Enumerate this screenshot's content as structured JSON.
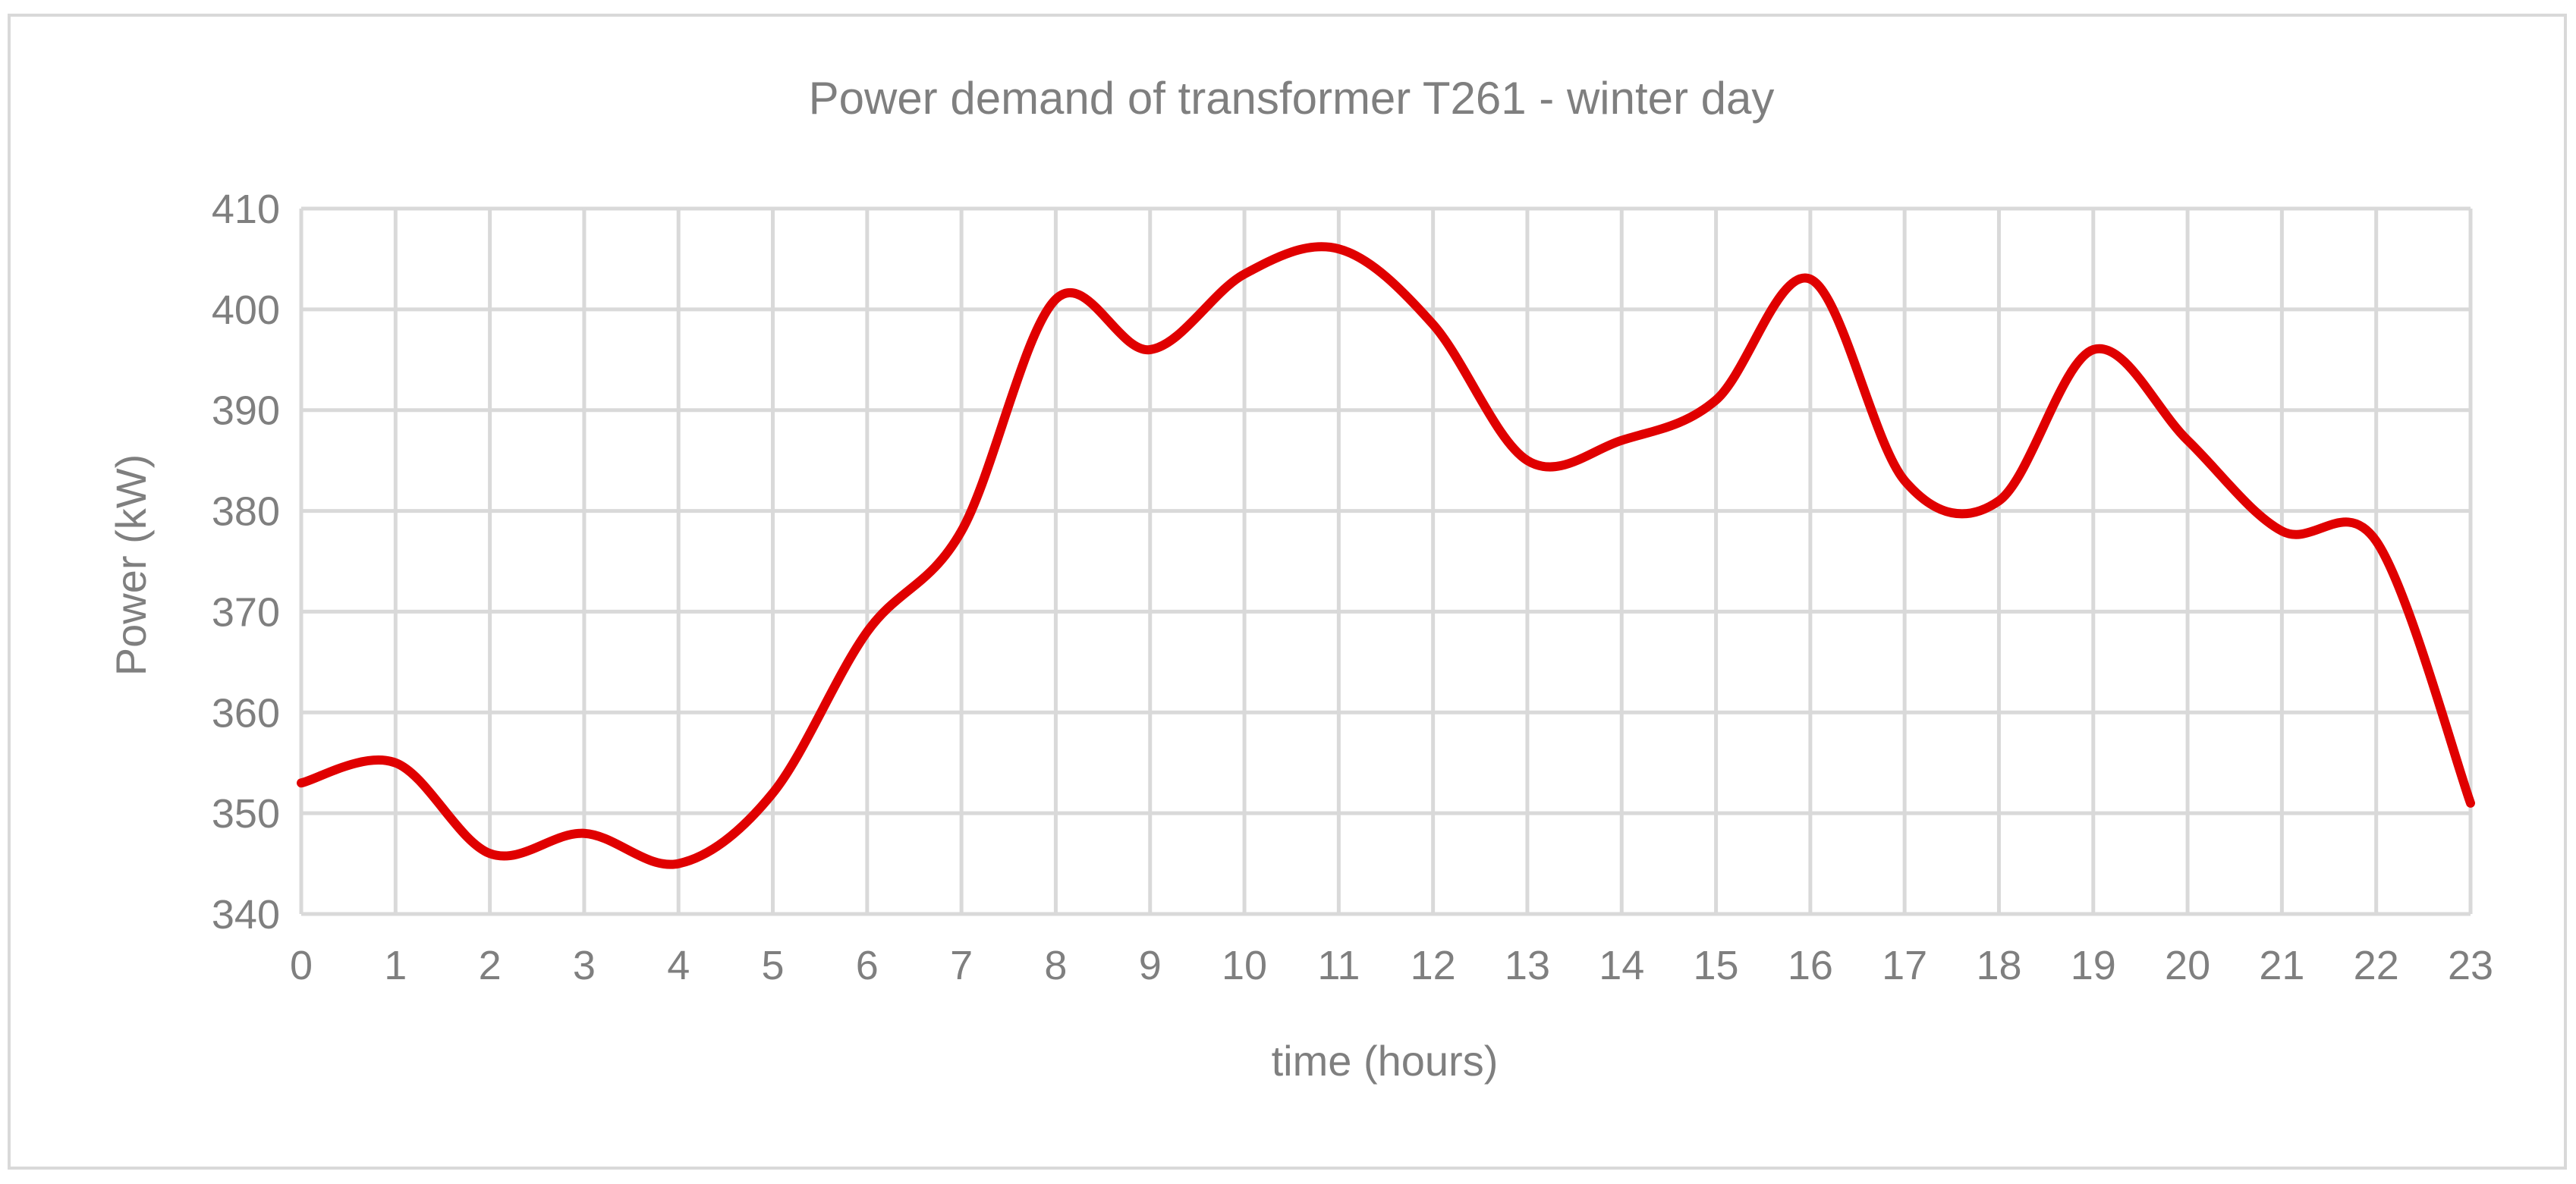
{
  "colors": {
    "series": "#e00000",
    "grid": "#d9d9d9",
    "text": "#7f7f7f",
    "background": "#ffffff"
  },
  "chart_data": {
    "type": "line",
    "title": "Power demand of transformer T261 - winter day",
    "xlabel": "time (hours)",
    "ylabel": "Power (kW)",
    "x": [
      0,
      1,
      2,
      3,
      4,
      5,
      6,
      7,
      8,
      9,
      10,
      11,
      12,
      13,
      14,
      15,
      16,
      17,
      18,
      19,
      20,
      21,
      22,
      23
    ],
    "x_tick_labels": [
      "0",
      "1",
      "2",
      "3",
      "4",
      "5",
      "6",
      "7",
      "8",
      "9",
      "10",
      "11",
      "12",
      "13",
      "14",
      "15",
      "16",
      "17",
      "18",
      "19",
      "20",
      "21",
      "22",
      "23"
    ],
    "y_tick_labels": [
      "340",
      "350",
      "360",
      "370",
      "380",
      "390",
      "400",
      "410"
    ],
    "ylim": [
      340,
      410
    ],
    "xlim": [
      0,
      23
    ],
    "grid": true,
    "series": [
      {
        "color": "#e00000",
        "values": [
          353,
          355,
          346,
          348,
          345,
          352,
          368,
          378,
          401,
          396,
          403.5,
          406,
          398.5,
          385,
          387,
          391,
          403,
          383,
          381,
          396,
          387,
          378,
          377,
          351
        ]
      }
    ]
  }
}
